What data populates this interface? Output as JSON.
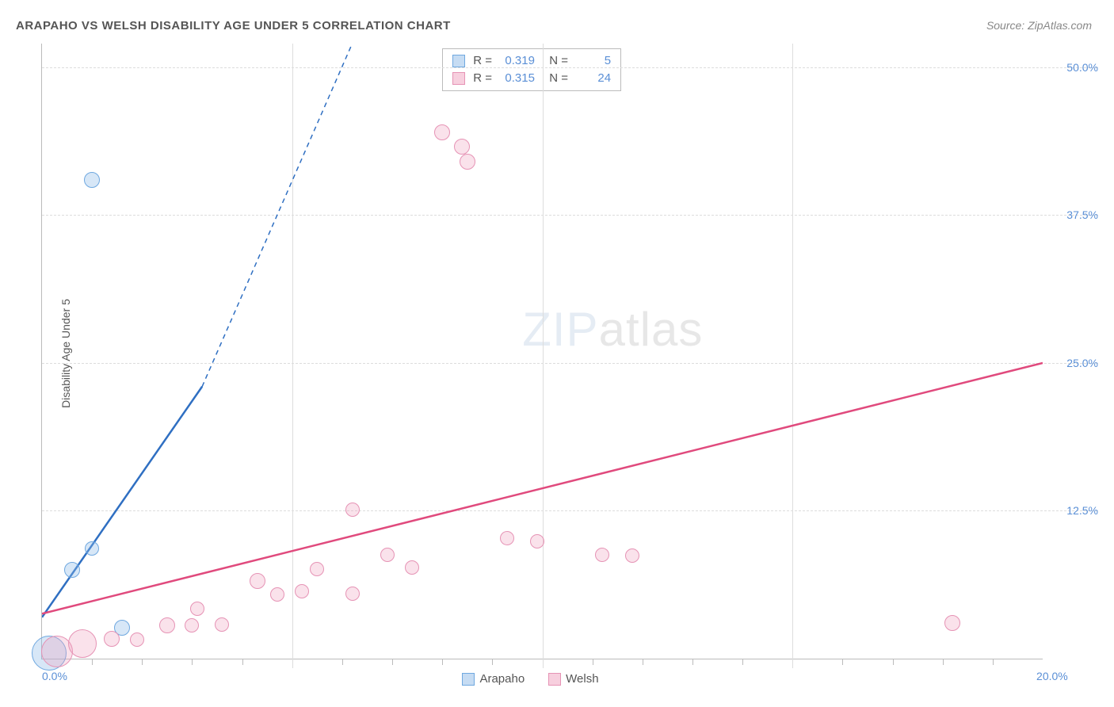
{
  "title": "ARAPAHO VS WELSH DISABILITY AGE UNDER 5 CORRELATION CHART",
  "source": "Source: ZipAtlas.com",
  "y_axis_label": "Disability Age Under 5",
  "watermark": {
    "bold": "ZIP",
    "light": "atlas"
  },
  "chart": {
    "type": "scatter-correlation",
    "background_color": "#ffffff",
    "grid_color": "#dddddd",
    "axis_color": "#bbbbbb",
    "label_color": "#5a8fd6",
    "xlim": [
      0,
      20
    ],
    "ylim": [
      0,
      52
    ],
    "y_ticks": [
      {
        "value": 12.5,
        "label": "12.5%"
      },
      {
        "value": 25.0,
        "label": "25.0%"
      },
      {
        "value": 37.5,
        "label": "37.5%"
      },
      {
        "value": 50.0,
        "label": "50.0%"
      }
    ],
    "x_ticks": [
      {
        "value": 0,
        "label": "0.0%"
      },
      {
        "value": 20,
        "label": "20.0%"
      }
    ],
    "x_minor_ticks": [
      1,
      2,
      3,
      4,
      5,
      6,
      7,
      8,
      9,
      10,
      11,
      12,
      13,
      14,
      15,
      16,
      17,
      18,
      19
    ],
    "series": [
      {
        "name": "Arapaho",
        "color_fill": "rgba(141,186,232,0.35)",
        "color_stroke": "#6fa8e0",
        "R": "0.319",
        "N": "5",
        "trend": {
          "x1": 0,
          "y1": 3.5,
          "x2_solid": 3.2,
          "y2_solid": 23,
          "x2_dash": 6.2,
          "y2_dash": 52,
          "color": "#2f6fc2",
          "width": 2.5
        },
        "points": [
          {
            "x": 0.15,
            "y": 0.5,
            "r": 22
          },
          {
            "x": 0.6,
            "y": 7.5,
            "r": 10
          },
          {
            "x": 1.0,
            "y": 9.3,
            "r": 9
          },
          {
            "x": 1.6,
            "y": 2.6,
            "r": 10
          },
          {
            "x": 1.0,
            "y": 40.5,
            "r": 10
          }
        ]
      },
      {
        "name": "Welsh",
        "color_fill": "rgba(240,160,190,0.3)",
        "color_stroke": "#e693b5",
        "R": "0.315",
        "N": "24",
        "trend": {
          "x1": 0,
          "y1": 3.8,
          "x2_solid": 20,
          "y2_solid": 25,
          "color": "#e04a7d",
          "width": 2.5
        },
        "points": [
          {
            "x": 0.3,
            "y": 0.6,
            "r": 20
          },
          {
            "x": 0.8,
            "y": 1.3,
            "r": 18
          },
          {
            "x": 1.4,
            "y": 1.7,
            "r": 10
          },
          {
            "x": 1.9,
            "y": 1.6,
            "r": 9
          },
          {
            "x": 2.5,
            "y": 2.8,
            "r": 10
          },
          {
            "x": 3.0,
            "y": 2.8,
            "r": 9
          },
          {
            "x": 3.1,
            "y": 4.2,
            "r": 9
          },
          {
            "x": 3.6,
            "y": 2.9,
            "r": 9
          },
          {
            "x": 4.3,
            "y": 6.6,
            "r": 10
          },
          {
            "x": 4.7,
            "y": 5.4,
            "r": 9
          },
          {
            "x": 5.2,
            "y": 5.7,
            "r": 9
          },
          {
            "x": 5.5,
            "y": 7.6,
            "r": 9
          },
          {
            "x": 6.2,
            "y": 5.5,
            "r": 9
          },
          {
            "x": 6.2,
            "y": 12.6,
            "r": 9
          },
          {
            "x": 6.9,
            "y": 8.8,
            "r": 9
          },
          {
            "x": 7.4,
            "y": 7.7,
            "r": 9
          },
          {
            "x": 8.0,
            "y": 44.5,
            "r": 10
          },
          {
            "x": 8.4,
            "y": 43.3,
            "r": 10
          },
          {
            "x": 8.5,
            "y": 42.0,
            "r": 10
          },
          {
            "x": 9.3,
            "y": 10.2,
            "r": 9
          },
          {
            "x": 9.9,
            "y": 9.9,
            "r": 9
          },
          {
            "x": 11.2,
            "y": 8.8,
            "r": 9
          },
          {
            "x": 11.8,
            "y": 8.7,
            "r": 9
          },
          {
            "x": 18.2,
            "y": 3.0,
            "r": 10
          }
        ]
      }
    ],
    "legend_bottom": [
      {
        "swatch": "blue",
        "label": "Arapaho"
      },
      {
        "swatch": "pink",
        "label": "Welsh"
      }
    ]
  }
}
